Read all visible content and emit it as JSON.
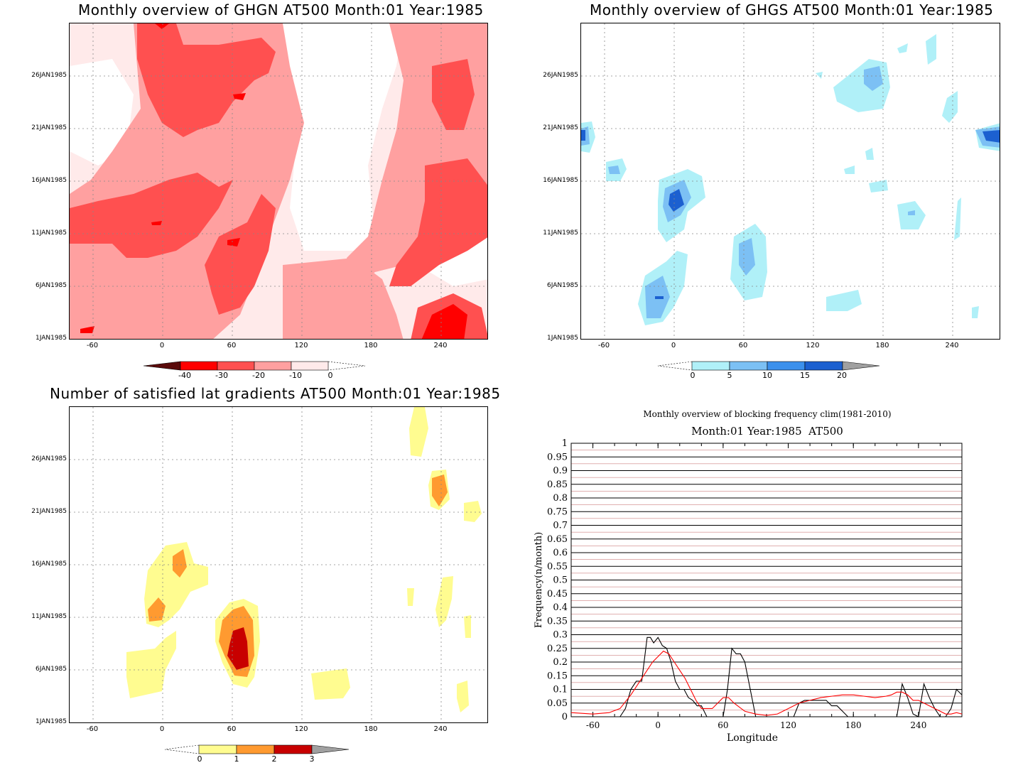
{
  "panels": {
    "ghgn": {
      "title": "Monthly overview of GHGN AT500 Month:01 Year:1985",
      "yticks": [
        "26JAN1985",
        "21JAN1985",
        "16JAN1985",
        "11JAN1985",
        "6JAN1985",
        "1JAN1985"
      ],
      "xticks": [
        "-60",
        "0",
        "60",
        "120",
        "180",
        "240"
      ],
      "colorbar_labels": [
        "-40",
        "-30",
        "-20",
        "-10",
        "0"
      ],
      "colorbar_colors": [
        "#5a0a0a",
        "#ff0000",
        "#ff5050",
        "#ffa0a0",
        "#ffeaea"
      ]
    },
    "ghgs": {
      "title": "Monthly overview of GHGS AT500 Month:01 Year:1985",
      "yticks": [
        "26JAN1985",
        "21JAN1985",
        "16JAN1985",
        "11JAN1985",
        "6JAN1985",
        "1JAN1985"
      ],
      "xticks": [
        "-60",
        "0",
        "60",
        "120",
        "180",
        "240"
      ],
      "colorbar_labels": [
        "0",
        "5",
        "10",
        "15",
        "20"
      ],
      "colorbar_colors": [
        "#b0f0f8",
        "#7cc0f4",
        "#3c90ec",
        "#1c60d0",
        "#a0a0a0"
      ]
    },
    "lat": {
      "title": "Number of satisfied lat gradients AT500 Month:01 Year:1985",
      "yticks": [
        "26JAN1985",
        "21JAN1985",
        "16JAN1985",
        "11JAN1985",
        "6JAN1985",
        "1JAN1985"
      ],
      "xticks": [
        "-60",
        "0",
        "60",
        "120",
        "180",
        "240"
      ],
      "colorbar_labels": [
        "0",
        "1",
        "2",
        "3"
      ],
      "colorbar_colors": [
        "#fffc90",
        "#ff9a30",
        "#c80000",
        "#a0a0a0"
      ]
    }
  },
  "chart_data": {
    "type": "line",
    "title": "Monthly overview of blocking frequency clim(1981-2010)",
    "subtitle": "Month:01 Year:1985  AT500",
    "xlabel": "Longitude",
    "ylabel": "Frequency(n/month)",
    "xlim": [
      -80,
      280
    ],
    "ylim": [
      0,
      1
    ],
    "xticks": [
      "-60",
      "0",
      "60",
      "120",
      "180",
      "240"
    ],
    "xtick_values": [
      -60,
      0,
      60,
      120,
      180,
      240
    ],
    "yticks": [
      "0",
      "0.05",
      "0.1",
      "0.15",
      "0.2",
      "0.25",
      "0.3",
      "0.35",
      "0.4",
      "0.45",
      "0.5",
      "0.55",
      "0.6",
      "0.65",
      "0.7",
      "0.75",
      "0.8",
      "0.85",
      "0.9",
      "0.95",
      "1"
    ],
    "series": [
      {
        "color": "#000000",
        "x": [
          -80,
          -35,
          -30,
          -25,
          -20,
          -15,
          -10,
          -7,
          -4,
          0,
          4,
          8,
          12,
          16,
          20,
          24,
          28,
          32,
          36,
          40,
          45,
          50,
          55,
          60,
          64,
          68,
          72,
          76,
          80,
          85,
          90,
          95,
          100,
          110,
          115,
          120,
          125,
          130,
          135,
          140,
          145,
          150,
          155,
          160,
          165,
          170,
          175,
          180,
          185,
          190,
          195,
          200,
          205,
          210,
          215,
          220,
          225,
          230,
          235,
          240,
          245,
          250,
          255,
          260,
          265,
          270,
          275,
          280
        ],
        "y": [
          0,
          0,
          0.03,
          0.1,
          0.13,
          0.13,
          0.29,
          0.29,
          0.27,
          0.29,
          0.26,
          0.25,
          0.2,
          0.13,
          0.1,
          0.1,
          0.07,
          0.06,
          0.04,
          0.04,
          0,
          0,
          0,
          0,
          0.1,
          0.25,
          0.23,
          0.23,
          0.2,
          0.1,
          0,
          0,
          0,
          0,
          0,
          0,
          0,
          0.05,
          0.06,
          0.06,
          0.06,
          0.06,
          0.06,
          0.04,
          0.04,
          0.02,
          0,
          0,
          0,
          0,
          0,
          0,
          0,
          0,
          0,
          0,
          0.12,
          0.07,
          0.01,
          0,
          0.12,
          0.07,
          0.03,
          0,
          0,
          0.03,
          0.1,
          0.08
        ]
      },
      {
        "color": "#ff0000",
        "x": [
          -80,
          -60,
          -45,
          -35,
          -25,
          -15,
          -5,
          0,
          5,
          10,
          15,
          20,
          25,
          30,
          35,
          40,
          45,
          50,
          55,
          60,
          65,
          70,
          80,
          90,
          100,
          110,
          120,
          130,
          140,
          150,
          160,
          170,
          180,
          190,
          200,
          210,
          215,
          220,
          225,
          230,
          235,
          240,
          245,
          250,
          255,
          260,
          265,
          270,
          275,
          280
        ],
        "y": [
          0.015,
          0.01,
          0.015,
          0.03,
          0.08,
          0.14,
          0.2,
          0.22,
          0.24,
          0.23,
          0.2,
          0.17,
          0.14,
          0.1,
          0.06,
          0.03,
          0.03,
          0.03,
          0.05,
          0.07,
          0.07,
          0.05,
          0.02,
          0.01,
          0.005,
          0.01,
          0.03,
          0.05,
          0.06,
          0.07,
          0.075,
          0.08,
          0.08,
          0.075,
          0.07,
          0.075,
          0.08,
          0.09,
          0.09,
          0.08,
          0.06,
          0.06,
          0.05,
          0.04,
          0.03,
          0.02,
          0.01,
          0.01,
          0.015,
          0.01
        ]
      }
    ]
  }
}
